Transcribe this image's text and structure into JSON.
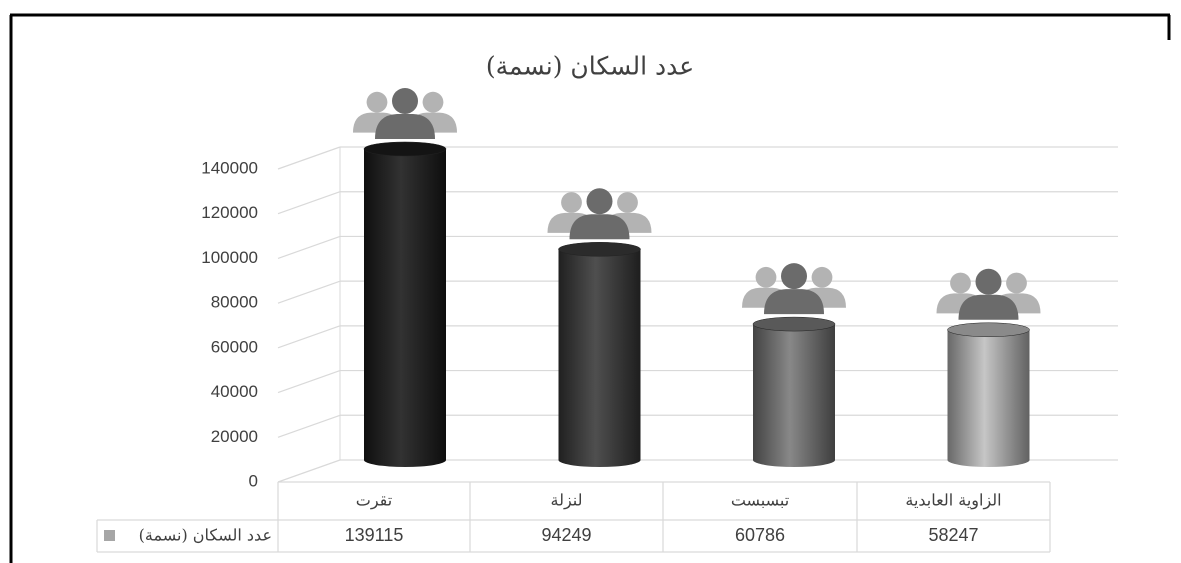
{
  "chart_data": {
    "type": "bar3d",
    "title": "عدد السكان (نسمة)",
    "categories": [
      "تقرت",
      "لنزلة",
      "تبسبست",
      "الزاوية العابدية"
    ],
    "series": [
      {
        "name": "عدد السكان (نسمة)",
        "color": "#a6a6a6",
        "values": [
          139115,
          94249,
          60786,
          58247
        ]
      }
    ],
    "colors": [
      "#141414",
      "#2b2b2b",
      "#595959",
      "#8a8a8a"
    ],
    "ylim": [
      0,
      140000
    ],
    "yticks": [
      0,
      20000,
      40000,
      60000,
      80000,
      100000,
      120000,
      140000
    ],
    "grid": true,
    "data_table": true
  }
}
